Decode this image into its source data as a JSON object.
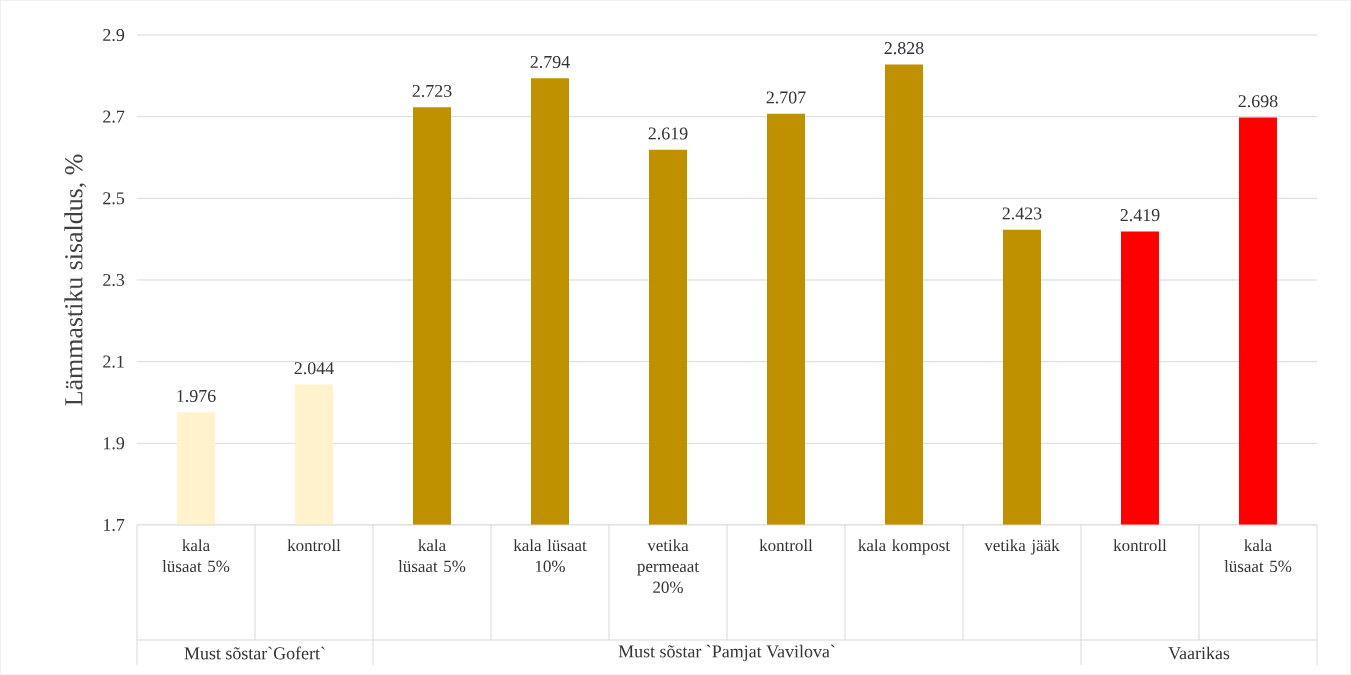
{
  "chart_data": {
    "type": "bar",
    "ylabel": "Lämmastiku sisaldus, %",
    "categories": [
      "kala lüsaat 5%",
      "kontroll",
      "kala lüsaat 5%",
      "kala lüsaat 10%",
      "vetika permeaat 20%",
      "kontroll",
      "kala kompost",
      "vetika jääk",
      "kontroll",
      "kala lüsaat 5%"
    ],
    "values": [
      1.976,
      2.044,
      2.723,
      2.794,
      2.619,
      2.707,
      2.828,
      2.423,
      2.419,
      2.698
    ],
    "colors": [
      "#fff2cc",
      "#fff2cc",
      "#bf9000",
      "#bf9000",
      "#bf9000",
      "#bf9000",
      "#bf9000",
      "#bf9000",
      "#ff0000",
      "#ff0000"
    ],
    "data_labels": true,
    "ylim": [
      1.7,
      2.9
    ],
    "yticks": [
      1.7,
      1.9,
      2.1,
      2.3,
      2.5,
      2.7,
      2.9
    ],
    "grid": "y",
    "annotations": [
      "Must sõstar`Gofert`",
      "Must sõstar `Pamjat Vavilova`",
      "Vaarikas"
    ]
  }
}
